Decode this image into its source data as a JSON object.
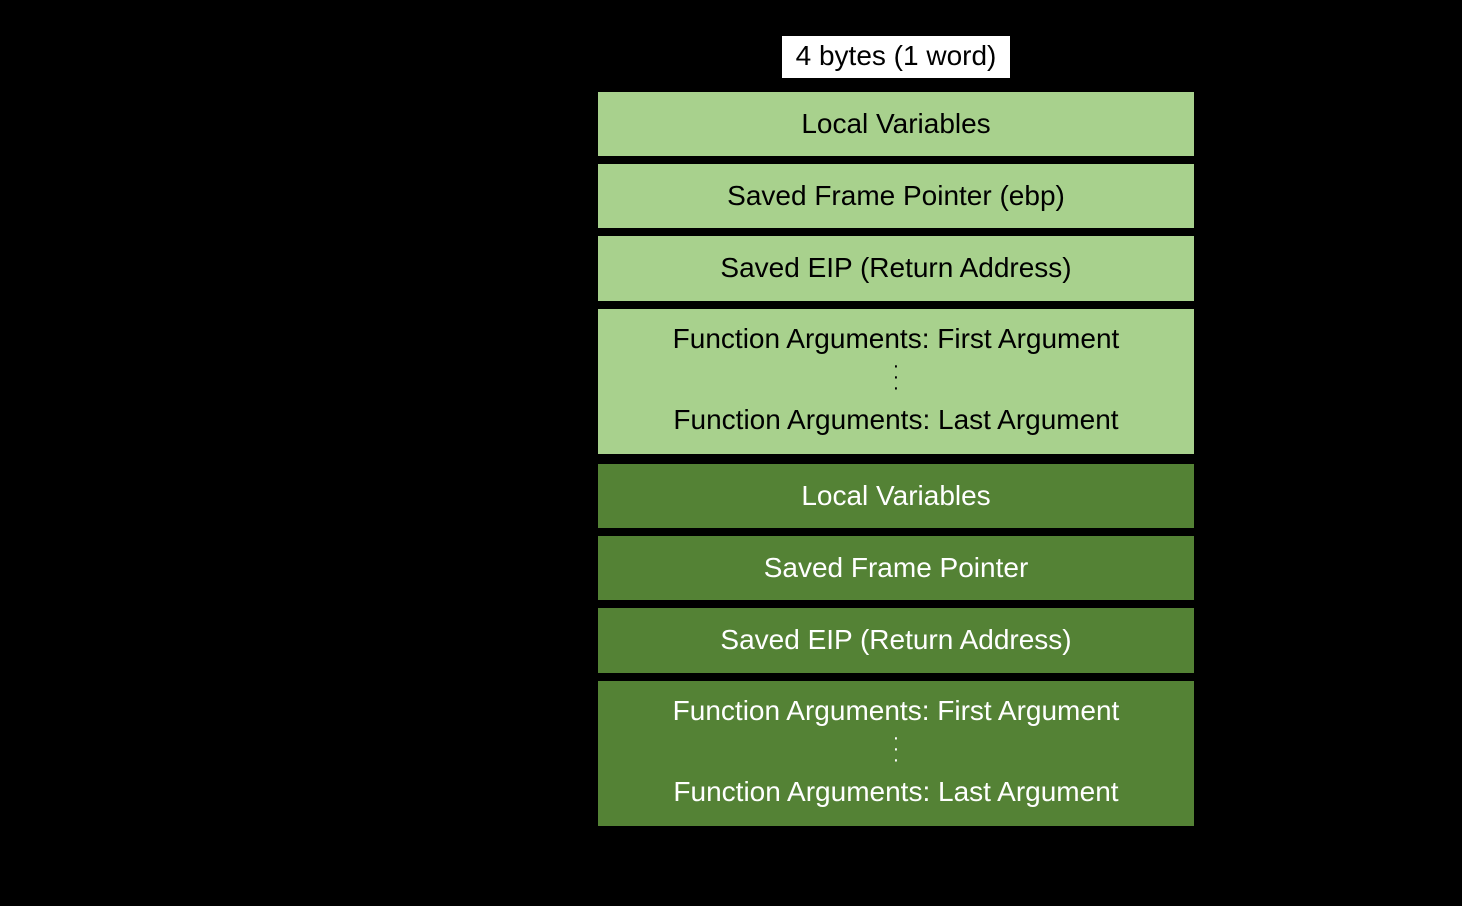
{
  "diagram": {
    "type": "stack-frame-diagram",
    "background_color": "#000000",
    "width_label": "4 bytes (1 word)",
    "width_label_bg": "#ffffff",
    "width_label_text_color": "#000000",
    "cell_border_color": "#000000",
    "font_family": "Arial",
    "label_fontsize_pt": 21,
    "frames": [
      {
        "id": "callee",
        "fill_color": "#a8d18d",
        "text_color": "#000000",
        "cells": [
          {
            "kind": "single",
            "text": "Local Variables"
          },
          {
            "kind": "single",
            "text": "Saved Frame Pointer (ebp)"
          },
          {
            "kind": "single",
            "text": "Saved EIP (Return Address)"
          },
          {
            "kind": "args",
            "first": "Function Arguments: First Argument",
            "last": "Function Arguments: Last Argument"
          }
        ]
      },
      {
        "id": "caller",
        "fill_color": "#548235",
        "text_color": "#ffffff",
        "cells": [
          {
            "kind": "single",
            "text": "Local Variables"
          },
          {
            "kind": "single",
            "text": "Saved Frame Pointer"
          },
          {
            "kind": "single",
            "text": "Saved EIP (Return Address)"
          },
          {
            "kind": "args",
            "first": "Function Arguments: First Argument",
            "last": "Function Arguments: Last Argument"
          }
        ]
      }
    ]
  }
}
